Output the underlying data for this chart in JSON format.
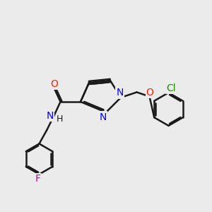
{
  "background_color": "#ebebeb",
  "bond_color": "#1a1a1a",
  "atom_colors": {
    "N": "#0000ff",
    "O": "#ff2200",
    "F": "#cc00cc",
    "Cl": "#228800",
    "H": "#1a1a1a"
  },
  "bond_width": 1.8,
  "dbo": 0.07,
  "figsize": [
    3.0,
    3.0
  ],
  "dpi": 100
}
